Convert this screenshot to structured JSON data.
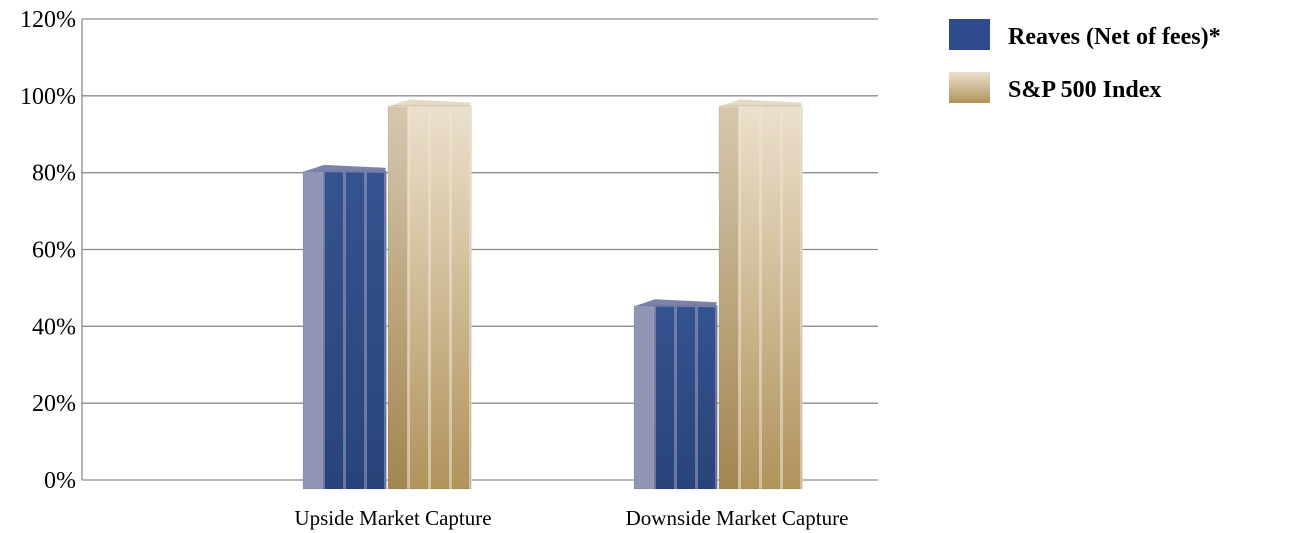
{
  "chart_data": {
    "type": "bar",
    "categories": [
      "Upside Market Capture",
      "Downside Market Capture"
    ],
    "series": [
      {
        "name": "Reaves (Net of fees)*",
        "values": [
          81,
          46
        ],
        "color": "#2f4b8c"
      },
      {
        "name": "S&P 500 Index",
        "values": [
          98,
          98
        ],
        "color": "#c4a878"
      }
    ],
    "ylim": [
      0,
      120
    ],
    "yticks": [
      "0%",
      "20%",
      "40%",
      "60%",
      "80%",
      "100%",
      "120%"
    ],
    "grid": true,
    "legend": "top-right",
    "style": "3d-bar"
  }
}
